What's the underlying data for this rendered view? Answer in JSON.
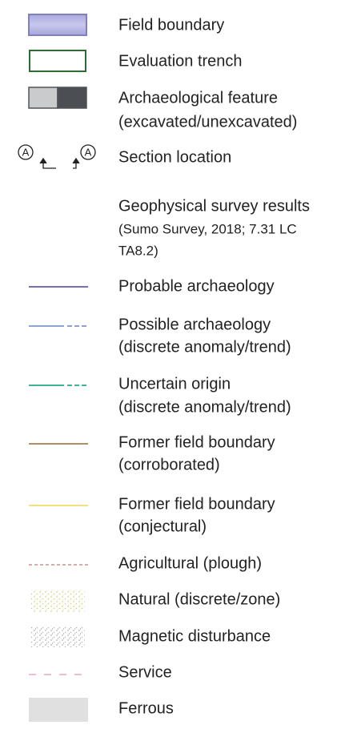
{
  "legend": {
    "items": [
      {
        "lines": [
          "Field boundary"
        ]
      },
      {
        "lines": [
          "Evaluation trench"
        ]
      },
      {
        "lines": [
          "Archaeological feature",
          "(excavated/unexcavated)"
        ]
      },
      {
        "lines": [
          "Section location"
        ],
        "symbol_label": "A"
      },
      {
        "lines": [
          "Geophysical survey results"
        ],
        "note": [
          "(Sumo Survey, 2018; 7.31 LC",
          "TA8.2)"
        ]
      },
      {
        "lines": [
          "Probable archaeology"
        ]
      },
      {
        "lines": [
          "Possible archaeology",
          "(discrete anomaly/trend)"
        ]
      },
      {
        "lines": [
          "Uncertain origin",
          "(discrete anomaly/trend)"
        ]
      },
      {
        "lines": [
          "Former field boundary",
          "(corroborated)"
        ]
      },
      {
        "lines": [
          "Former field boundary",
          "(conjectural)"
        ]
      },
      {
        "lines": [
          "Agricultural (plough)"
        ]
      },
      {
        "lines": [
          "Natural (discrete/zone)"
        ]
      },
      {
        "lines": [
          "Magnetic disturbance"
        ]
      },
      {
        "lines": [
          "Service"
        ]
      },
      {
        "lines": [
          "Ferrous"
        ]
      }
    ]
  }
}
